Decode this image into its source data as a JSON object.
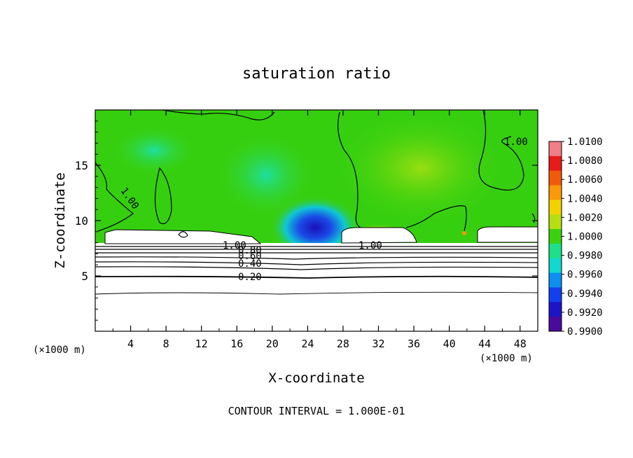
{
  "chart_data": {
    "type": "heatmap",
    "title": "saturation ratio",
    "xlabel": "X-coordinate",
    "ylabel": "Z-coordinate",
    "x_unit_left": "(×1000 m)",
    "x_unit_right": "(×1000 m)",
    "xlim": [
      0,
      50
    ],
    "ylim": [
      0,
      20
    ],
    "x_ticks": [
      "4",
      "8",
      "12",
      "16",
      "20",
      "24",
      "28",
      "32",
      "36",
      "40",
      "44",
      "48"
    ],
    "y_ticks": [
      "5",
      "10",
      "15"
    ],
    "colorbar": {
      "labels": [
        "1.0100",
        "1.0080",
        "1.0060",
        "1.0040",
        "1.0020",
        "1.0000",
        "0.9980",
        "0.9960",
        "0.9940",
        "0.9920",
        "0.9900"
      ],
      "colors": [
        "#f07f86",
        "#e81a1a",
        "#f25a0a",
        "#fb9a06",
        "#f3d200",
        "#b5df10",
        "#3ad20e",
        "#1ee088",
        "#10d9cf",
        "#0c8ff0",
        "#1240f0",
        "#1d14c8",
        "#4a0a9c"
      ]
    },
    "contour_labels": [
      "1.00",
      "1.00",
      "1.00",
      "0.80",
      "0.60",
      "0.40",
      "0.20",
      "1.00"
    ],
    "footer": "CONTOUR INTERVAL = 1.000E-01"
  }
}
